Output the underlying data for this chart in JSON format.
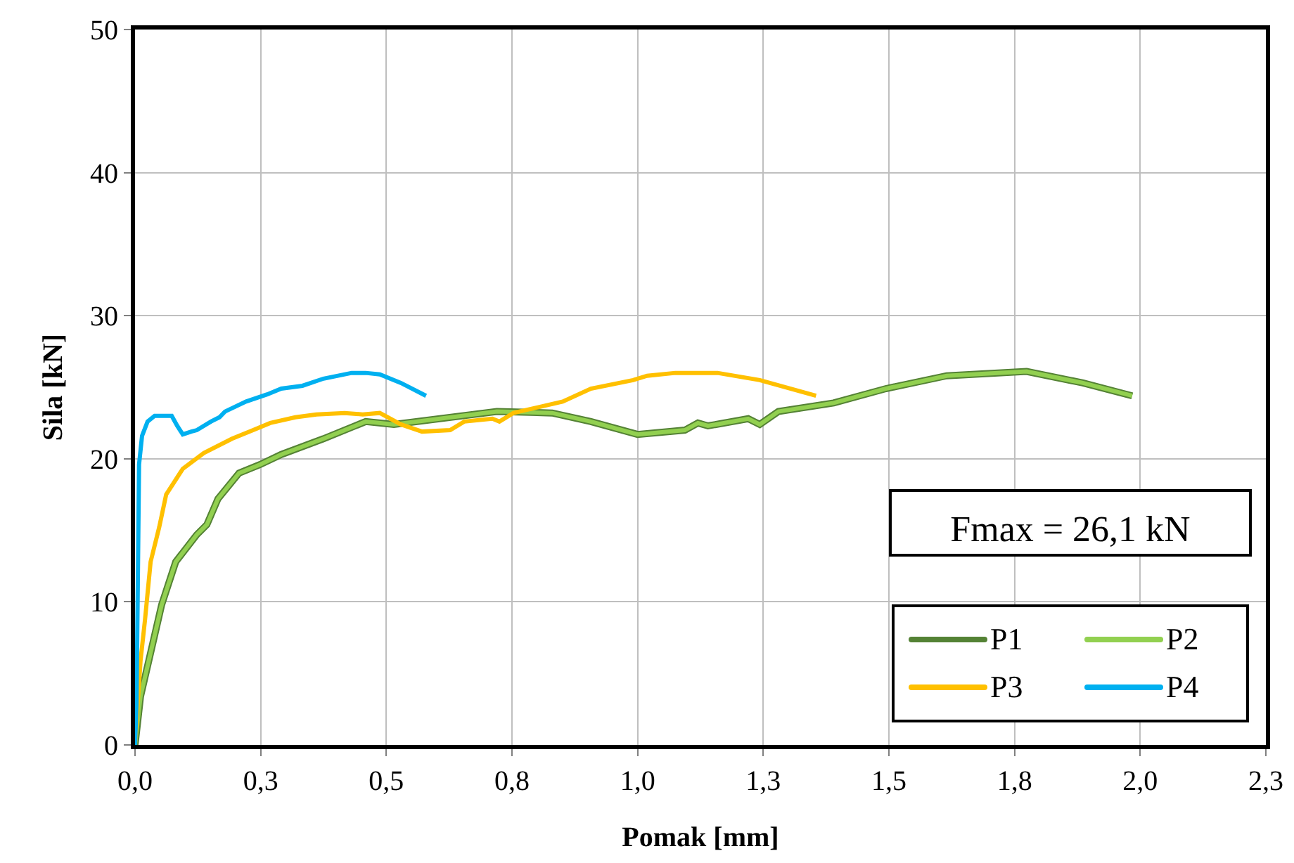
{
  "chart_data": {
    "type": "line",
    "xlabel": "Pomak [mm]",
    "ylabel": "Sila [kN]",
    "xlim": [
      0,
      2.25
    ],
    "ylim": [
      0,
      50
    ],
    "xticks": [
      {
        "value": 0,
        "label": "0,0"
      },
      {
        "value": 0.25,
        "label": "0,3"
      },
      {
        "value": 0.5,
        "label": "0,5"
      },
      {
        "value": 0.75,
        "label": "0,8"
      },
      {
        "value": 1,
        "label": "1,0"
      },
      {
        "value": 1.25,
        "label": "1,3"
      },
      {
        "value": 1.5,
        "label": "1,5"
      },
      {
        "value": 1.75,
        "label": "1,8"
      },
      {
        "value": 2,
        "label": "2,0"
      },
      {
        "value": 2.25,
        "label": "2,3"
      }
    ],
    "yticks": [
      0,
      10,
      20,
      30,
      40,
      50
    ],
    "grid": true,
    "legend": "bottom right",
    "marker": "none",
    "line_style": "solid",
    "annotations": [
      "Fmax = 26,1 kN"
    ],
    "series": [
      {
        "name": "P1",
        "color": "#548235",
        "x": [
          0,
          0.011,
          0.034,
          0.053,
          0.081,
          0.123,
          0.143,
          0.165,
          0.207,
          0.249,
          0.291,
          0.375,
          0.459,
          0.515,
          0.72,
          0.83,
          0.907,
          1.0,
          1.094,
          1.12,
          1.14,
          1.22,
          1.243,
          1.28,
          1.39,
          1.494,
          1.615,
          1.774,
          1.886,
          1.984
        ],
        "values": [
          0,
          3.4,
          6.9,
          9.8,
          12.8,
          14.7,
          15.4,
          17.2,
          19,
          19.6,
          20.3,
          21.4,
          22.6,
          22.4,
          23.3,
          23.2,
          22.6,
          21.7,
          22,
          22.5,
          22.3,
          22.8,
          22.4,
          23.3,
          23.9,
          24.9,
          25.8,
          26.1,
          25.3,
          24.4
        ]
      },
      {
        "name": "P2",
        "color": "#92d050",
        "x": [
          0,
          0.011,
          0.034,
          0.053,
          0.081,
          0.123,
          0.143,
          0.165,
          0.207,
          0.249,
          0.291,
          0.375,
          0.459,
          0.515,
          0.72,
          0.83,
          0.907,
          1.0,
          1.094,
          1.12,
          1.14,
          1.22,
          1.243,
          1.28,
          1.39,
          1.494,
          1.615,
          1.774,
          1.886,
          1.984
        ],
        "values": [
          0,
          3.4,
          6.9,
          9.8,
          12.8,
          14.7,
          15.4,
          17.2,
          19,
          19.6,
          20.3,
          21.4,
          22.6,
          22.4,
          23.3,
          23.2,
          22.6,
          21.7,
          22,
          22.5,
          22.3,
          22.8,
          22.4,
          23.3,
          23.9,
          24.9,
          25.8,
          26.1,
          25.3,
          24.4
        ]
      },
      {
        "name": "P3",
        "color": "#ffc000",
        "x": [
          0,
          0.011,
          0.02,
          0.031,
          0.048,
          0.062,
          0.095,
          0.137,
          0.193,
          0.235,
          0.269,
          0.319,
          0.361,
          0.417,
          0.453,
          0.487,
          0.529,
          0.571,
          0.627,
          0.655,
          0.711,
          0.725,
          0.753,
          0.851,
          0.907,
          0.991,
          1.019,
          1.075,
          1.159,
          1.243,
          1.355
        ],
        "values": [
          0,
          5.9,
          8.8,
          12.8,
          15.2,
          17.5,
          19.3,
          20.4,
          21.4,
          22,
          22.5,
          22.9,
          23.1,
          23.2,
          23.1,
          23.2,
          22.4,
          21.9,
          22,
          22.6,
          22.8,
          22.6,
          23.2,
          24,
          24.9,
          25.5,
          25.8,
          26,
          26,
          25.5,
          24.4
        ]
      },
      {
        "name": "P4",
        "color": "#00b0f0",
        "x": [
          0,
          0.003,
          0.006,
          0.008,
          0.014,
          0.025,
          0.039,
          0.062,
          0.073,
          0.084,
          0.095,
          0.112,
          0.123,
          0.151,
          0.168,
          0.179,
          0.221,
          0.263,
          0.291,
          0.333,
          0.375,
          0.431,
          0.459,
          0.487,
          0.529,
          0.579
        ],
        "values": [
          0,
          2.9,
          12.8,
          19.6,
          21.6,
          22.6,
          23,
          23,
          23,
          22.3,
          21.7,
          21.9,
          22,
          22.6,
          22.9,
          23.3,
          24,
          24.5,
          24.9,
          25.1,
          25.6,
          26,
          26,
          25.9,
          25.3,
          24.4
        ]
      }
    ]
  }
}
